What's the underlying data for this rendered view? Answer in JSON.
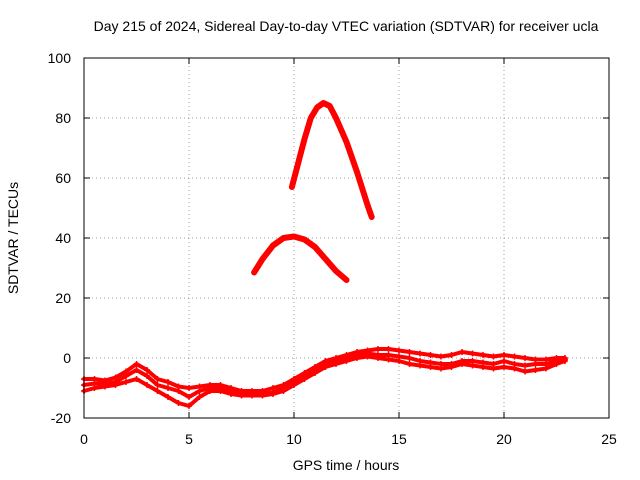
{
  "chart_data": {
    "type": "line",
    "title": "Day 215 of 2024, Sidereal Day-to-day VTEC variation (SDTVAR) for receiver ucla",
    "xlabel": "GPS time / hours",
    "ylabel": "SDTVAR / TECUs",
    "xlim": [
      0,
      25
    ],
    "ylim": [
      -20,
      100
    ],
    "xticks": [
      "0",
      "5",
      "10",
      "15",
      "20",
      "25"
    ],
    "yticks": [
      "-20",
      "0",
      "20",
      "40",
      "60",
      "80",
      "100"
    ],
    "grid": true,
    "color": "#ff0000",
    "series": [
      {
        "name": "band-upper",
        "x": [
          0,
          0.5,
          1,
          1.5,
          2,
          2.5,
          3,
          3.5,
          4,
          4.5,
          5,
          5.5,
          6,
          6.5,
          7,
          7.5,
          8,
          8.5,
          9,
          9.5,
          10,
          10.5,
          11,
          11.5,
          12,
          12.5,
          13,
          13.5,
          14,
          14.5,
          15,
          15.5,
          16,
          16.5,
          17,
          17.5,
          18,
          18.5,
          19,
          19.5,
          20,
          20.5,
          21,
          21.5,
          22,
          22.5,
          22.9
        ],
        "values": [
          -7,
          -7,
          -7.5,
          -6.5,
          -4.5,
          -2,
          -4,
          -7,
          -8,
          -9.5,
          -10,
          -9.5,
          -9,
          -9,
          -10,
          -11,
          -11,
          -11,
          -10,
          -9,
          -7,
          -5,
          -3,
          -1,
          0,
          1,
          2,
          2.5,
          3,
          3,
          2.5,
          2,
          1.5,
          1,
          0.5,
          1,
          2,
          1.5,
          1,
          0.5,
          1,
          0.5,
          0,
          -0.5,
          -0.5,
          0,
          0
        ]
      },
      {
        "name": "band-middle",
        "x": [
          0,
          0.5,
          1,
          1.5,
          2,
          2.5,
          3,
          3.5,
          4,
          4.5,
          5,
          5.5,
          6,
          6.5,
          7,
          7.5,
          8,
          8.5,
          9,
          9.5,
          10,
          10.5,
          11,
          11.5,
          12,
          12.5,
          13,
          13.5,
          14,
          14.5,
          15,
          15.5,
          16,
          16.5,
          17,
          17.5,
          18,
          18.5,
          19,
          19.5,
          20,
          20.5,
          21,
          21.5,
          22,
          22.5,
          22.9
        ],
        "values": [
          -9,
          -8.5,
          -8.5,
          -8,
          -6,
          -4,
          -6,
          -9,
          -10,
          -11,
          -13,
          -11,
          -10,
          -10,
          -11,
          -12,
          -12,
          -12,
          -11.5,
          -10,
          -8,
          -6,
          -4,
          -2,
          -1,
          0,
          1,
          1.5,
          1,
          1,
          0.5,
          0,
          -1,
          -1.5,
          -2,
          -2,
          -1,
          -1,
          -1.5,
          -2,
          -1,
          -2,
          -2.5,
          -2,
          -2,
          -1,
          -0.5
        ]
      },
      {
        "name": "band-lower",
        "x": [
          0,
          0.5,
          1,
          1.5,
          2,
          2.5,
          3,
          3.5,
          4,
          4.5,
          5,
          5.5,
          6,
          6.5,
          7,
          7.5,
          8,
          8.5,
          9,
          9.5,
          10,
          10.5,
          11,
          11.5,
          12,
          12.5,
          13,
          13.5,
          14,
          14.5,
          15,
          15.5,
          16,
          16.5,
          17,
          17.5,
          18,
          18.5,
          19,
          19.5,
          20,
          20.5,
          21,
          21.5,
          22,
          22.5,
          22.9
        ],
        "values": [
          -11,
          -10,
          -9.5,
          -9,
          -8,
          -7,
          -9,
          -11,
          -13,
          -15,
          -16,
          -13,
          -11,
          -11,
          -12,
          -12.5,
          -12.5,
          -12.5,
          -12,
          -11,
          -9,
          -7,
          -5,
          -3,
          -2,
          -1,
          0,
          0.5,
          0,
          -0.5,
          -1,
          -2,
          -2.5,
          -3,
          -3.5,
          -3,
          -2,
          -2.5,
          -3,
          -3.5,
          -3,
          -3.5,
          -4.5,
          -4,
          -3.5,
          -2,
          -1
        ]
      },
      {
        "name": "arc-40",
        "x": [
          8.1,
          8.5,
          9,
          9.5,
          10,
          10.5,
          11,
          11.5,
          12,
          12.5
        ],
        "values": [
          28.5,
          33,
          37.5,
          40,
          40.5,
          39.5,
          37,
          33,
          29,
          26
        ]
      },
      {
        "name": "arc-85",
        "x": [
          9.9,
          10.2,
          10.5,
          10.8,
          11.1,
          11.4,
          11.7,
          12,
          12.5,
          13,
          13.5,
          13.7
        ],
        "values": [
          57,
          65,
          73,
          80,
          83.5,
          85,
          84,
          80,
          72,
          62,
          51,
          47
        ]
      }
    ]
  }
}
